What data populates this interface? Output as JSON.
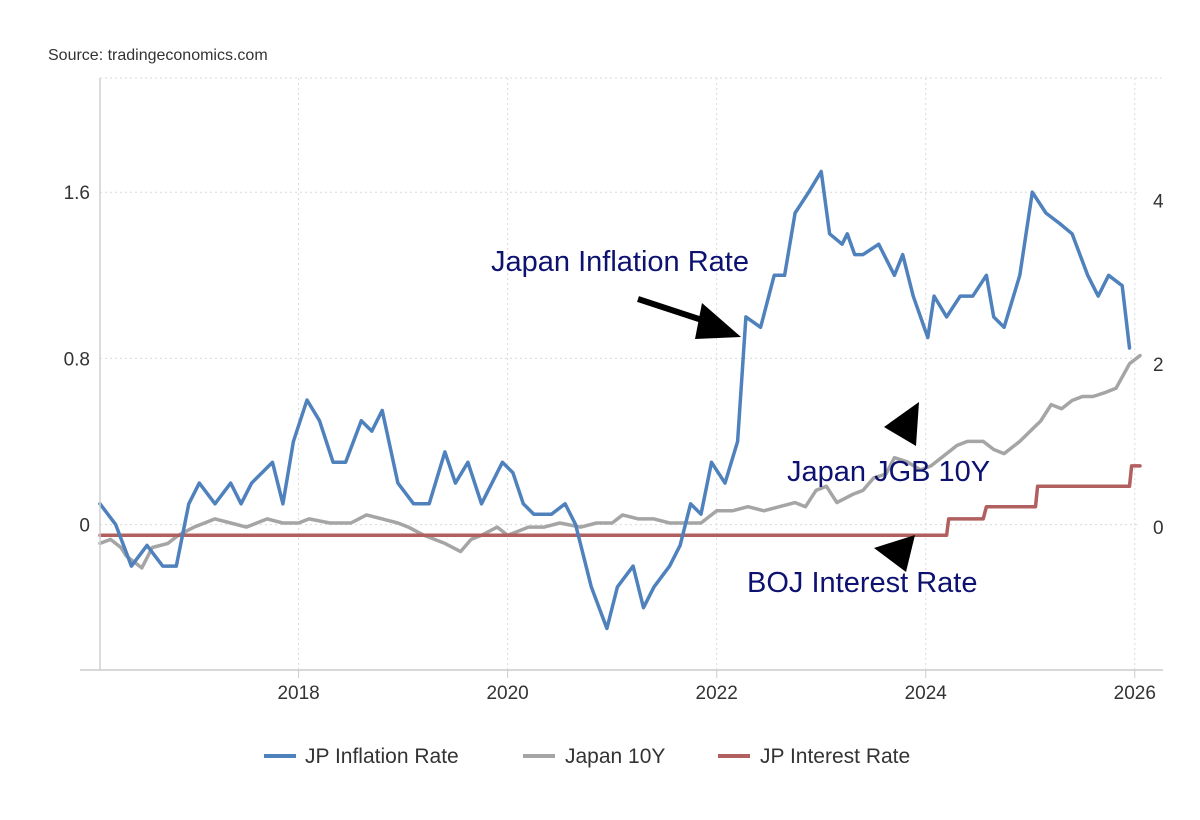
{
  "source": "Source: tradingeconomics.com",
  "chart_data": {
    "type": "line",
    "xlim": [
      2016.1,
      2026.05
    ],
    "x_ticks": [
      2018,
      2020,
      2022,
      2024,
      2026
    ],
    "y_left": {
      "lim": [
        -0.7,
        2.15
      ],
      "ticks": [
        1.6,
        0.8,
        0
      ],
      "tick_labels": [
        "1.6",
        "0.8",
        "0"
      ]
    },
    "y_right": {
      "lim": [
        -1.75,
        5.5
      ],
      "ticks": [
        4,
        2,
        0
      ],
      "tick_labels": [
        "4",
        "2",
        "0"
      ]
    },
    "grid": true,
    "legend": "bottom",
    "series": [
      {
        "name": "JP Inflation Rate",
        "color": "#4f81bd",
        "axis": "left",
        "points": [
          [
            2016.1,
            0.1
          ],
          [
            2016.25,
            0.0
          ],
          [
            2016.4,
            -0.2
          ],
          [
            2016.55,
            -0.1
          ],
          [
            2016.7,
            -0.2
          ],
          [
            2016.83,
            -0.2
          ],
          [
            2016.95,
            0.1
          ],
          [
            2017.05,
            0.2
          ],
          [
            2017.2,
            0.1
          ],
          [
            2017.35,
            0.2
          ],
          [
            2017.45,
            0.1
          ],
          [
            2017.55,
            0.2
          ],
          [
            2017.75,
            0.3
          ],
          [
            2017.85,
            0.1
          ],
          [
            2017.95,
            0.4
          ],
          [
            2018.08,
            0.6
          ],
          [
            2018.2,
            0.5
          ],
          [
            2018.33,
            0.3
          ],
          [
            2018.45,
            0.3
          ],
          [
            2018.6,
            0.5
          ],
          [
            2018.7,
            0.45
          ],
          [
            2018.8,
            0.55
          ],
          [
            2018.95,
            0.2
          ],
          [
            2019.1,
            0.1
          ],
          [
            2019.25,
            0.1
          ],
          [
            2019.4,
            0.35
          ],
          [
            2019.5,
            0.2
          ],
          [
            2019.62,
            0.3
          ],
          [
            2019.75,
            0.1
          ],
          [
            2019.95,
            0.3
          ],
          [
            2020.05,
            0.25
          ],
          [
            2020.15,
            0.1
          ],
          [
            2020.25,
            0.05
          ],
          [
            2020.42,
            0.05
          ],
          [
            2020.55,
            0.1
          ],
          [
            2020.65,
            0.0
          ],
          [
            2020.8,
            -0.3
          ],
          [
            2020.95,
            -0.5
          ],
          [
            2021.05,
            -0.3
          ],
          [
            2021.2,
            -0.2
          ],
          [
            2021.3,
            -0.4
          ],
          [
            2021.4,
            -0.3
          ],
          [
            2021.55,
            -0.2
          ],
          [
            2021.65,
            -0.1
          ],
          [
            2021.75,
            0.1
          ],
          [
            2021.85,
            0.05
          ],
          [
            2021.95,
            0.3
          ],
          [
            2022.08,
            0.2
          ],
          [
            2022.2,
            0.4
          ],
          [
            2022.28,
            1.0
          ],
          [
            2022.42,
            0.95
          ],
          [
            2022.55,
            1.2
          ],
          [
            2022.65,
            1.2
          ],
          [
            2022.75,
            1.5
          ],
          [
            2022.88,
            1.6
          ],
          [
            2023.0,
            1.7
          ],
          [
            2023.08,
            1.4
          ],
          [
            2023.2,
            1.35
          ],
          [
            2023.25,
            1.4
          ],
          [
            2023.32,
            1.3
          ],
          [
            2023.4,
            1.3
          ],
          [
            2023.55,
            1.35
          ],
          [
            2023.7,
            1.2
          ],
          [
            2023.78,
            1.3
          ],
          [
            2023.88,
            1.1
          ],
          [
            2024.02,
            0.9
          ],
          [
            2024.08,
            1.1
          ],
          [
            2024.2,
            1.0
          ],
          [
            2024.33,
            1.1
          ],
          [
            2024.45,
            1.1
          ],
          [
            2024.58,
            1.2
          ],
          [
            2024.65,
            1.0
          ],
          [
            2024.75,
            0.95
          ],
          [
            2024.9,
            1.2
          ],
          [
            2025.02,
            1.6
          ],
          [
            2025.15,
            1.5
          ],
          [
            2025.28,
            1.45
          ],
          [
            2025.4,
            1.4
          ],
          [
            2025.55,
            1.2
          ],
          [
            2025.65,
            1.1
          ],
          [
            2025.75,
            1.2
          ],
          [
            2025.88,
            1.15
          ],
          [
            2025.95,
            0.85
          ]
        ]
      },
      {
        "name": "Japan 10Y",
        "color": "#a5a5a5",
        "axis": "right",
        "points": [
          [
            2016.1,
            -0.2
          ],
          [
            2016.2,
            -0.15
          ],
          [
            2016.3,
            -0.25
          ],
          [
            2016.35,
            -0.35
          ],
          [
            2016.5,
            -0.5
          ],
          [
            2016.6,
            -0.25
          ],
          [
            2016.75,
            -0.2
          ],
          [
            2016.85,
            -0.1
          ],
          [
            2017.0,
            0.0
          ],
          [
            2017.2,
            0.1
          ],
          [
            2017.35,
            0.05
          ],
          [
            2017.5,
            0.0
          ],
          [
            2017.6,
            0.05
          ],
          [
            2017.7,
            0.1
          ],
          [
            2017.85,
            0.05
          ],
          [
            2018.0,
            0.05
          ],
          [
            2018.1,
            0.1
          ],
          [
            2018.3,
            0.05
          ],
          [
            2018.5,
            0.05
          ],
          [
            2018.65,
            0.15
          ],
          [
            2018.8,
            0.1
          ],
          [
            2018.95,
            0.05
          ],
          [
            2019.05,
            0.0
          ],
          [
            2019.2,
            -0.1
          ],
          [
            2019.4,
            -0.2
          ],
          [
            2019.55,
            -0.3
          ],
          [
            2019.65,
            -0.15
          ],
          [
            2019.75,
            -0.1
          ],
          [
            2019.9,
            0.0
          ],
          [
            2020.0,
            -0.1
          ],
          [
            2020.1,
            -0.05
          ],
          [
            2020.2,
            0.0
          ],
          [
            2020.35,
            0.0
          ],
          [
            2020.5,
            0.05
          ],
          [
            2020.7,
            0.0
          ],
          [
            2020.85,
            0.05
          ],
          [
            2021.0,
            0.05
          ],
          [
            2021.1,
            0.15
          ],
          [
            2021.25,
            0.1
          ],
          [
            2021.4,
            0.1
          ],
          [
            2021.55,
            0.05
          ],
          [
            2021.7,
            0.05
          ],
          [
            2021.85,
            0.05
          ],
          [
            2022.0,
            0.2
          ],
          [
            2022.15,
            0.2
          ],
          [
            2022.3,
            0.25
          ],
          [
            2022.45,
            0.2
          ],
          [
            2022.6,
            0.25
          ],
          [
            2022.75,
            0.3
          ],
          [
            2022.85,
            0.25
          ],
          [
            2022.95,
            0.45
          ],
          [
            2023.05,
            0.5
          ],
          [
            2023.15,
            0.3
          ],
          [
            2023.3,
            0.4
          ],
          [
            2023.4,
            0.45
          ],
          [
            2023.5,
            0.6
          ],
          [
            2023.62,
            0.65
          ],
          [
            2023.7,
            0.85
          ],
          [
            2023.82,
            0.8
          ],
          [
            2023.95,
            0.7
          ],
          [
            2024.05,
            0.75
          ],
          [
            2024.2,
            0.9
          ],
          [
            2024.3,
            1.0
          ],
          [
            2024.4,
            1.05
          ],
          [
            2024.55,
            1.05
          ],
          [
            2024.65,
            0.95
          ],
          [
            2024.75,
            0.9
          ],
          [
            2024.9,
            1.05
          ],
          [
            2025.02,
            1.2
          ],
          [
            2025.1,
            1.3
          ],
          [
            2025.2,
            1.5
          ],
          [
            2025.3,
            1.45
          ],
          [
            2025.4,
            1.55
          ],
          [
            2025.5,
            1.6
          ],
          [
            2025.6,
            1.6
          ],
          [
            2025.72,
            1.65
          ],
          [
            2025.82,
            1.7
          ],
          [
            2025.95,
            2.0
          ],
          [
            2026.05,
            2.1
          ]
        ]
      },
      {
        "name": "JP Interest Rate",
        "color": "#b15f5f",
        "axis": "right",
        "points": [
          [
            2016.1,
            -0.1
          ],
          [
            2024.2,
            -0.1
          ],
          [
            2024.22,
            0.1
          ],
          [
            2024.55,
            0.1
          ],
          [
            2024.58,
            0.25
          ],
          [
            2025.05,
            0.25
          ],
          [
            2025.07,
            0.5
          ],
          [
            2025.95,
            0.5
          ],
          [
            2025.97,
            0.75
          ],
          [
            2026.05,
            0.75
          ]
        ]
      }
    ]
  },
  "annotations": [
    {
      "text": "Japan Inflation Rate",
      "color": "#0d1270"
    },
    {
      "text": "Japan JGB 10Y",
      "color": "#0d1270"
    },
    {
      "text": "BOJ Interest Rate",
      "color": "#0d1270"
    }
  ]
}
